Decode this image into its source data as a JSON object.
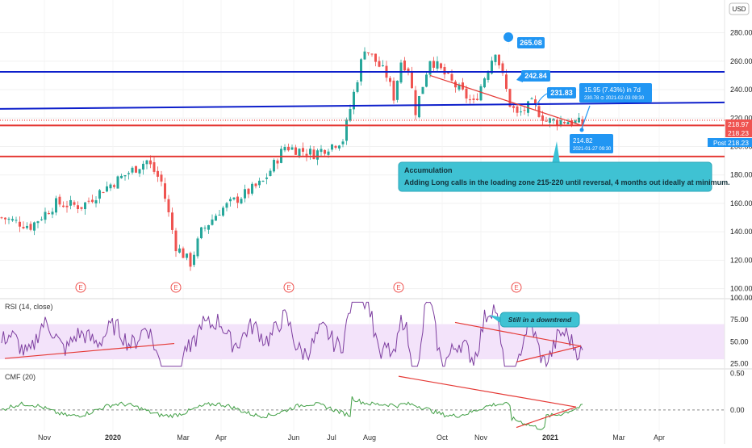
{
  "chart_data": [
    {
      "type": "candlestick",
      "title": "",
      "currency": "USD",
      "ylim": [
        110,
        290
      ],
      "y_ticks": [
        "280.00",
        "260.00",
        "240.00",
        "220.00",
        "200.00",
        "180.00",
        "160.00",
        "140.00",
        "120.00",
        "100.00"
      ],
      "x_ticks": [
        "Nov",
        "2020",
        "Mar",
        "Apr",
        "Jun",
        "Jul",
        "Aug",
        "Oct",
        "Nov",
        "2021",
        "Mar",
        "Apr"
      ],
      "price_path": {
        "x_index": [
          0,
          8,
          15,
          22,
          28,
          34,
          40,
          44,
          48,
          52,
          55,
          60,
          66,
          72,
          78,
          86,
          94,
          100,
          106,
          108,
          110,
          112,
          114,
          118,
          124,
          130,
          136,
          140,
          142,
          146,
          150,
          156,
          160
        ],
        "close": [
          150,
          144,
          160,
          158,
          170,
          180,
          190,
          175,
          130,
          118,
          140,
          155,
          165,
          175,
          200,
          195,
          205,
          270,
          250,
          235,
          260,
          255,
          225,
          262,
          245,
          230,
          268,
          230,
          222,
          230,
          218,
          218,
          216
        ]
      },
      "horizontal_levels": [
        {
          "value": 252.5,
          "color": "#0d1fcb"
        },
        {
          "value": 214.8,
          "color": "#e53935"
        },
        {
          "value": 193,
          "color": "#e53935"
        }
      ],
      "trend_line": {
        "from": 226.5,
        "to": 231,
        "color": "#0d1fcb"
      },
      "price_labels": [
        {
          "text": "265.08",
          "color": "#2196f3"
        },
        {
          "text": "242.84",
          "color": "#2196f3"
        },
        {
          "text": "231.83",
          "color": "#2196f3"
        }
      ],
      "axis_badges": [
        {
          "text": "218.97",
          "color": "#ef5350"
        },
        {
          "text": "218.23",
          "color": "#ef5350"
        },
        {
          "text": "Post",
          "color": "#2196f3"
        },
        {
          "text": "218.23",
          "color": "#2196f3"
        }
      ],
      "projection": {
        "line1": "15.95 (7.43%) in 7d",
        "line2": "230.78 ⊙ 2021-02-03 09:30"
      },
      "anchor_note": {
        "line1": "214.82",
        "line2": "2021-01-27 09:30"
      },
      "callout": {
        "title": "Accumulation",
        "body": "Adding Long calls in the loading zone 215-220 until reversal, 4 months out ideally at minimum."
      },
      "earnings_marker": "E"
    },
    {
      "type": "line",
      "name": "RSI (14, close)",
      "ylim": [
        20,
        100
      ],
      "y_ticks": [
        "100.00",
        "75.00",
        "50.00",
        "25.00"
      ],
      "band": [
        30,
        70
      ],
      "series": [
        {
          "name": "RSI",
          "color": "#7e3fa0"
        }
      ],
      "callout": "Still in a downtrend"
    },
    {
      "type": "line",
      "name": "CMF (20)",
      "ylim": [
        -0.3,
        0.55
      ],
      "y_ticks": [
        "0.50",
        "0.00"
      ],
      "series": [
        {
          "name": "CMF",
          "color": "#43a047"
        }
      ]
    }
  ]
}
